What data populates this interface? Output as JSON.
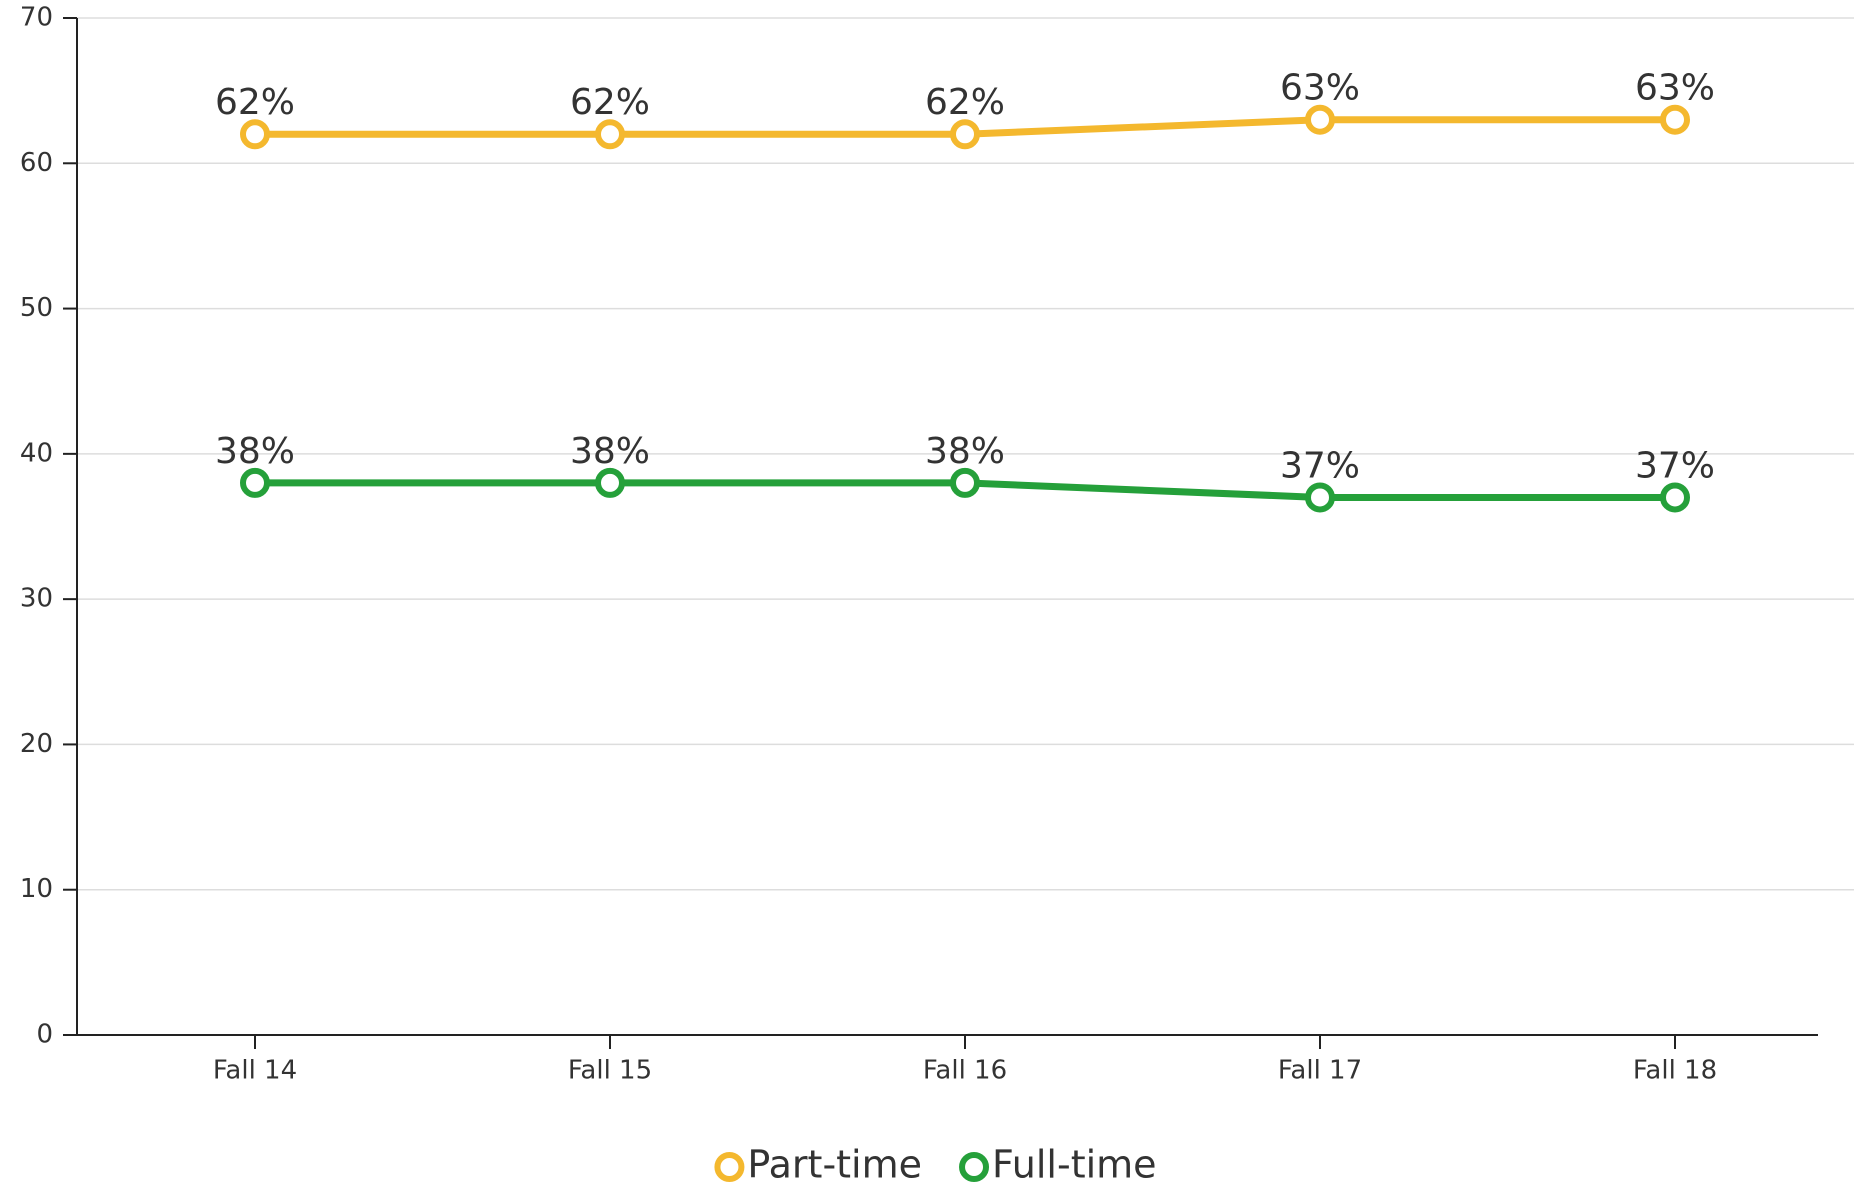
{
  "chart_data": {
    "type": "line",
    "categories": [
      "Fall 14",
      "Fall 15",
      "Fall 16",
      "Fall 17",
      "Fall 18"
    ],
    "series": [
      {
        "name": "Part-time",
        "color": "#f4b82e",
        "values": [
          62,
          62,
          62,
          63,
          63
        ],
        "value_labels": [
          "62%",
          "62%",
          "62%",
          "63%",
          "63%"
        ]
      },
      {
        "name": "Full-time",
        "color": "#25a03a",
        "values": [
          38,
          38,
          38,
          37,
          37
        ],
        "value_labels": [
          "38%",
          "38%",
          "38%",
          "37%",
          "37%"
        ]
      }
    ],
    "ylim": [
      0,
      70
    ],
    "yticks": [
      0,
      10,
      20,
      30,
      40,
      50,
      60,
      70
    ],
    "grid": true,
    "legend": "bottom"
  }
}
